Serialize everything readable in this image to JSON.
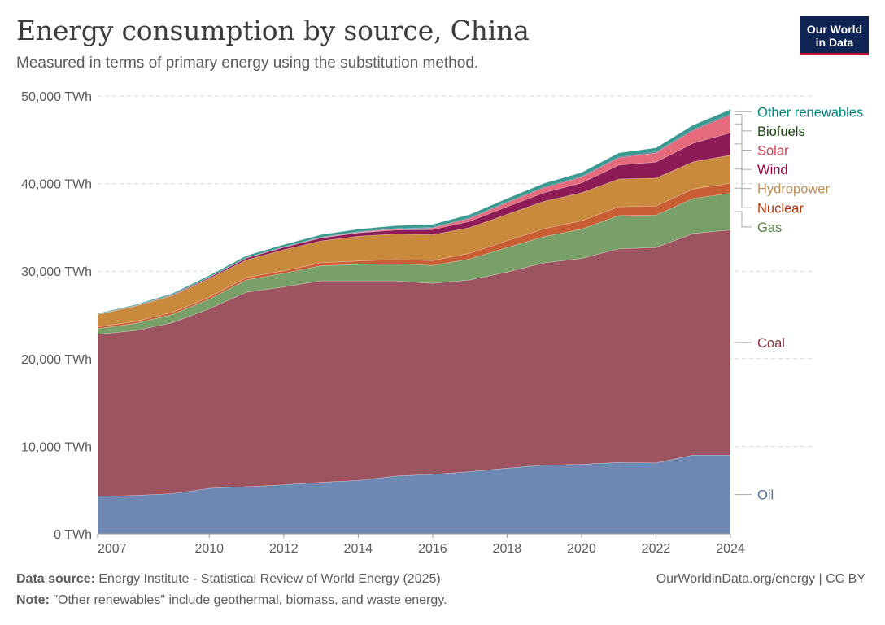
{
  "title": "Energy consumption by source, China",
  "subtitle": "Measured in terms of primary energy using the substitution method.",
  "logo": {
    "line1": "Our World",
    "line2": "in Data"
  },
  "footer": {
    "source_label": "Data source:",
    "source_text": "Energy Institute - Statistical Review of World Energy (2025)",
    "note_label": "Note:",
    "note_text": "\"Other renewables\" include geothermal, biomass, and waste energy.",
    "credit": "OurWorldinData.org/energy | CC BY"
  },
  "chart_data": {
    "type": "area",
    "stacked": true,
    "x": [
      2007,
      2008,
      2009,
      2010,
      2011,
      2012,
      2013,
      2014,
      2015,
      2016,
      2017,
      2018,
      2019,
      2020,
      2021,
      2022,
      2023,
      2024
    ],
    "x_ticks": [
      "2007",
      "2010",
      "2012",
      "2014",
      "2016",
      "2018",
      "2020",
      "2022",
      "2024"
    ],
    "y_ticks": [
      "0 TWh",
      "10,000 TWh",
      "20,000 TWh",
      "30,000 TWh",
      "40,000 TWh",
      "50,000 TWh"
    ],
    "ylim": [
      0,
      50000
    ],
    "grid": "horizontal dashed",
    "legend": "right, labels aligned to series",
    "series": [
      {
        "name": "Oil",
        "color": "#6f87b3",
        "label_color": "#4c6a9c",
        "values": [
          4300,
          4400,
          4600,
          5200,
          5400,
          5600,
          5900,
          6100,
          6600,
          6800,
          7100,
          7500,
          7850,
          7950,
          8150,
          8100,
          9000,
          9000
        ]
      },
      {
        "name": "Coal",
        "color": "#9c5560",
        "label_color": "#883039",
        "values": [
          18500,
          18800,
          19500,
          20500,
          22200,
          22600,
          23000,
          22800,
          22300,
          21800,
          21900,
          22400,
          23100,
          23500,
          24400,
          24600,
          25300,
          25700
        ]
      },
      {
        "name": "Gas",
        "color": "#7aa06a",
        "label_color": "#578145",
        "values": [
          650,
          820,
          950,
          1100,
          1400,
          1550,
          1720,
          1870,
          1950,
          2050,
          2400,
          2800,
          3000,
          3350,
          3800,
          3700,
          4000,
          4200
        ]
      },
      {
        "name": "Nuclear",
        "color": "#c95d34",
        "label_color": "#b13507",
        "values": [
          200,
          220,
          230,
          240,
          280,
          290,
          330,
          390,
          470,
          560,
          640,
          780,
          900,
          950,
          1000,
          1030,
          1080,
          1150
        ]
      },
      {
        "name": "Hydropower",
        "color": "#c98a3e",
        "label_color": "#bc8e5a",
        "values": [
          1400,
          1750,
          1900,
          2100,
          2000,
          2400,
          2500,
          2830,
          2920,
          2950,
          2940,
          3010,
          3140,
          3200,
          3170,
          3200,
          3100,
          3200
        ]
      },
      {
        "name": "Wind",
        "color": "#8c1b56",
        "label_color": "#970046",
        "values": [
          12,
          37,
          77,
          145,
          216,
          275,
          342,
          383,
          450,
          580,
          715,
          870,
          975,
          1125,
          1595,
          1825,
          2135,
          2550
        ]
      },
      {
        "name": "Solar",
        "color": "#e56a7b",
        "label_color": "#d73c50",
        "values": [
          1,
          1,
          1,
          2,
          8,
          16,
          40,
          68,
          113,
          188,
          330,
          470,
          570,
          660,
          835,
          1060,
          1475,
          2050
        ]
      },
      {
        "name": "Biofuels",
        "color": "#283e66",
        "label_color": "#18470f",
        "values": [
          20,
          25,
          30,
          35,
          40,
          45,
          50,
          55,
          60,
          65,
          70,
          75,
          80,
          80,
          85,
          90,
          95,
          100
        ]
      },
      {
        "name": "Other renewables",
        "color": "#3a9a8f",
        "label_color": "#00847e",
        "values": [
          80,
          100,
          140,
          190,
          230,
          250,
          280,
          300,
          330,
          350,
          380,
          400,
          430,
          450,
          470,
          480,
          500,
          520
        ]
      }
    ]
  }
}
